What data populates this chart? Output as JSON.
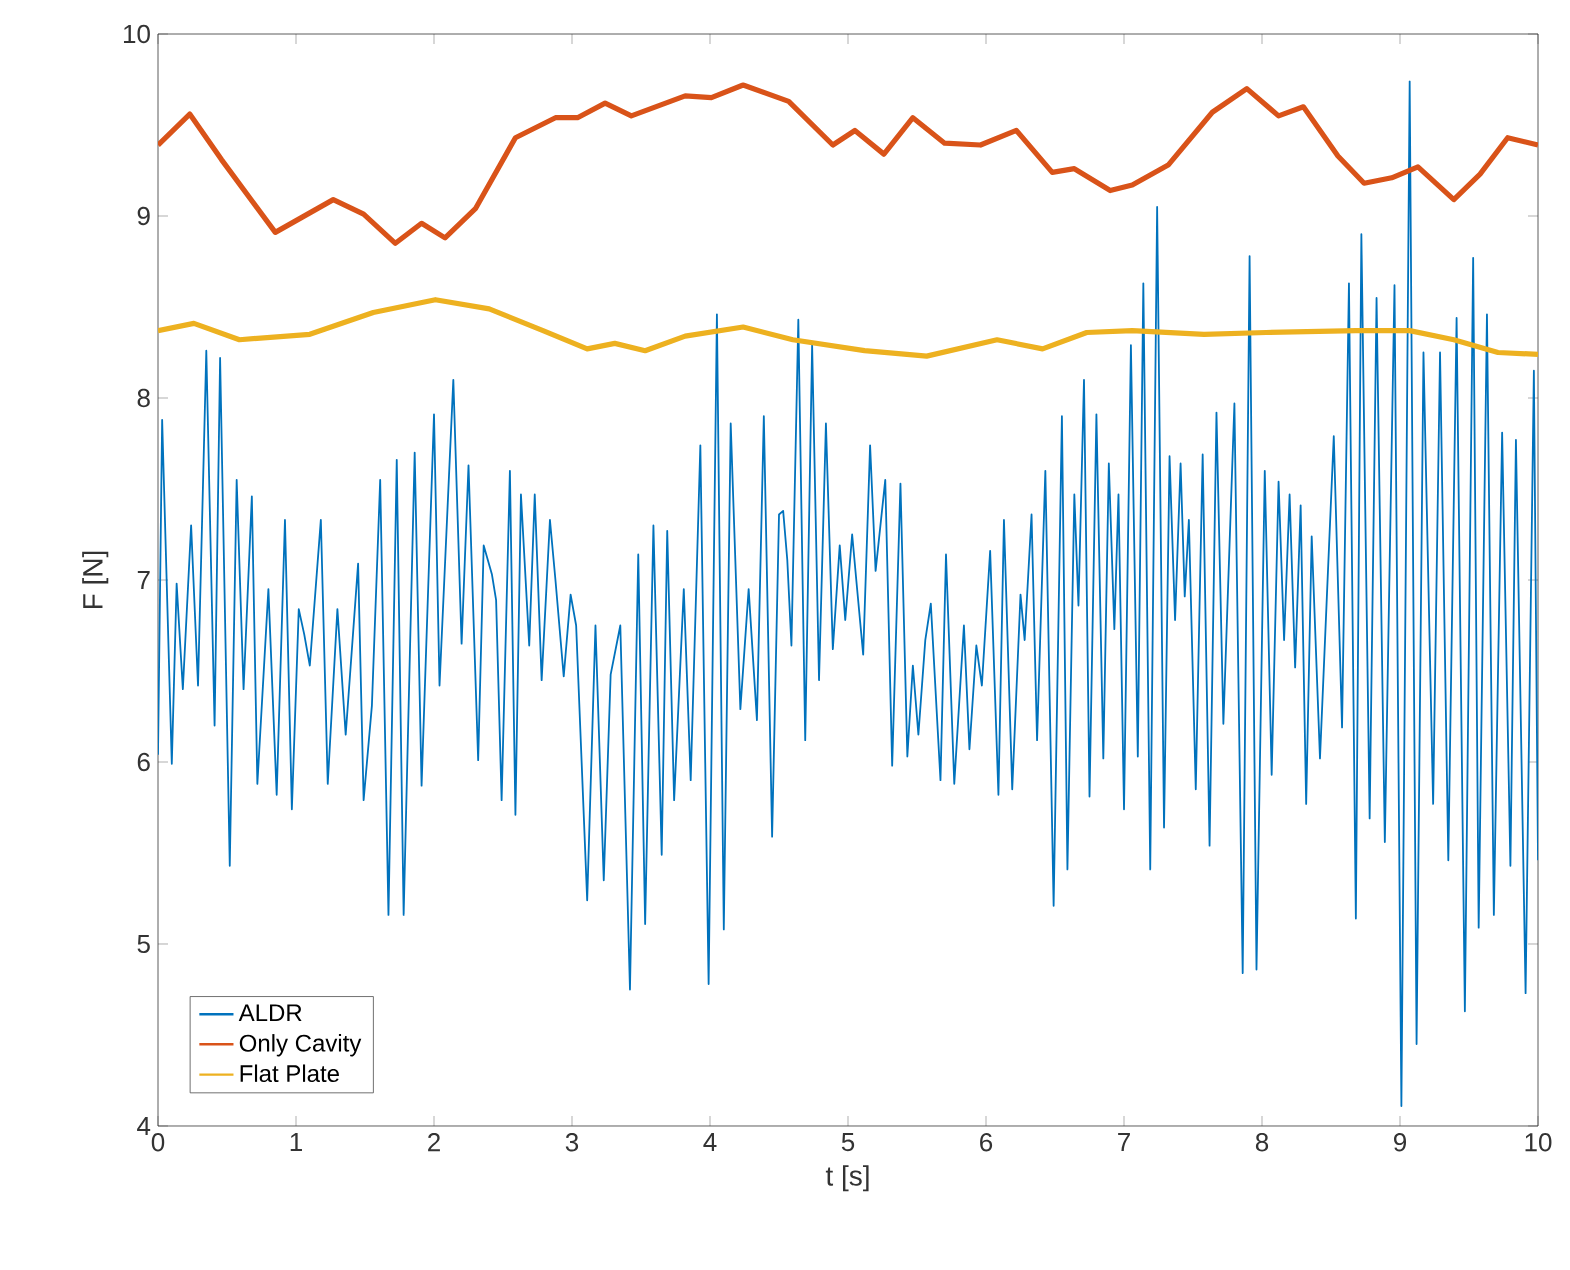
{
  "chart_data": {
    "type": "line",
    "xlabel": "t [s]",
    "ylabel": "F [N]",
    "xlim": [
      0,
      10
    ],
    "ylim": [
      4,
      10
    ],
    "xticks": [
      0,
      1,
      2,
      3,
      4,
      5,
      6,
      7,
      8,
      9,
      10
    ],
    "yticks": [
      4,
      5,
      6,
      7,
      8,
      9,
      10
    ],
    "legend": "bottom left",
    "marker": "none",
    "line_style": "solid",
    "series": [
      {
        "name": "ALDR",
        "color": "#0072bd",
        "x": [
          0.0,
          0.03,
          0.1,
          0.135,
          0.18,
          0.24,
          0.29,
          0.35,
          0.41,
          0.45,
          0.52,
          0.57,
          0.62,
          0.68,
          0.72,
          0.8,
          0.86,
          0.92,
          0.97,
          1.02,
          1.06,
          1.1,
          1.18,
          1.23,
          1.3,
          1.36,
          1.45,
          1.49,
          1.55,
          1.61,
          1.67,
          1.73,
          1.78,
          1.86,
          1.91,
          2.0,
          2.04,
          2.14,
          2.2,
          2.25,
          2.32,
          2.36,
          2.42,
          2.45,
          2.49,
          2.55,
          2.59,
          2.63,
          2.69,
          2.73,
          2.78,
          2.84,
          2.88,
          2.94,
          2.99,
          3.03,
          3.11,
          3.17,
          3.23,
          3.28,
          3.35,
          3.42,
          3.48,
          3.53,
          3.59,
          3.65,
          3.69,
          3.74,
          3.81,
          3.86,
          3.93,
          3.99,
          4.05,
          4.1,
          4.15,
          4.22,
          4.28,
          4.34,
          4.39,
          4.45,
          4.5,
          4.53,
          4.56,
          4.59,
          4.64,
          4.69,
          4.74,
          4.79,
          4.84,
          4.89,
          4.94,
          4.98,
          5.03,
          5.06,
          5.11,
          5.16,
          5.2,
          5.27,
          5.32,
          5.38,
          5.43,
          5.47,
          5.51,
          5.56,
          5.6,
          5.67,
          5.71,
          5.77,
          5.84,
          5.88,
          5.93,
          5.97,
          6.03,
          6.09,
          6.13,
          6.19,
          6.25,
          6.28,
          6.33,
          6.37,
          6.43,
          6.49,
          6.55,
          6.59,
          6.64,
          6.67,
          6.71,
          6.75,
          6.8,
          6.85,
          6.89,
          6.93,
          6.96,
          7.0,
          7.05,
          7.1,
          7.14,
          7.19,
          7.24,
          7.29,
          7.33,
          7.37,
          7.41,
          7.44,
          7.47,
          7.52,
          7.57,
          7.62,
          7.67,
          7.72,
          7.8,
          7.86,
          7.91,
          7.96,
          8.02,
          8.07,
          8.12,
          8.16,
          8.2,
          8.24,
          8.28,
          8.32,
          8.36,
          8.42,
          8.47,
          8.52,
          8.58,
          8.63,
          8.68,
          8.72,
          8.78,
          8.83,
          8.89,
          8.96,
          9.01,
          9.07,
          9.12,
          9.17,
          9.24,
          9.29,
          9.35,
          9.41,
          9.47,
          9.53,
          9.57,
          9.63,
          9.68,
          9.74,
          9.8,
          9.84,
          9.91,
          9.97,
          10.0
        ],
        "values": [
          6.04,
          7.88,
          5.99,
          6.98,
          6.4,
          7.3,
          6.42,
          8.26,
          6.2,
          8.22,
          5.43,
          7.55,
          6.4,
          7.46,
          5.88,
          6.95,
          5.82,
          7.33,
          5.74,
          6.84,
          6.7,
          6.53,
          7.33,
          5.88,
          6.84,
          6.15,
          7.09,
          5.79,
          6.31,
          7.55,
          5.16,
          7.66,
          5.16,
          7.7,
          5.87,
          7.91,
          6.42,
          8.1,
          6.65,
          7.63,
          6.01,
          7.19,
          7.03,
          6.89,
          5.79,
          7.6,
          5.71,
          7.47,
          6.64,
          7.47,
          6.45,
          7.33,
          7.0,
          6.47,
          6.92,
          6.75,
          5.24,
          6.75,
          5.35,
          6.48,
          6.75,
          4.75,
          7.14,
          5.11,
          7.3,
          5.49,
          7.27,
          5.79,
          6.95,
          5.9,
          7.74,
          4.78,
          8.46,
          5.08,
          7.86,
          6.29,
          6.95,
          6.23,
          7.9,
          5.59,
          7.36,
          7.38,
          7.11,
          6.64,
          8.43,
          6.12,
          8.29,
          6.45,
          7.86,
          6.62,
          7.19,
          6.78,
          7.25,
          7.0,
          6.59,
          7.74,
          7.05,
          7.55,
          5.98,
          7.53,
          6.03,
          6.53,
          6.15,
          6.67,
          6.87,
          5.9,
          7.14,
          5.88,
          6.75,
          6.07,
          6.64,
          6.42,
          7.16,
          5.82,
          7.33,
          5.85,
          6.92,
          6.67,
          7.36,
          6.12,
          7.6,
          5.21,
          7.9,
          5.41,
          7.47,
          6.86,
          8.1,
          5.81,
          7.91,
          6.02,
          7.64,
          6.73,
          7.47,
          5.74,
          8.29,
          6.03,
          8.63,
          5.41,
          9.05,
          5.64,
          7.68,
          6.78,
          7.64,
          6.91,
          7.33,
          5.85,
          7.69,
          5.54,
          7.92,
          6.21,
          7.97,
          4.84,
          8.78,
          4.86,
          7.6,
          5.93,
          7.54,
          6.67,
          7.47,
          6.52,
          7.41,
          5.77,
          7.24,
          6.02,
          6.91,
          7.79,
          6.19,
          8.63,
          5.14,
          8.9,
          5.69,
          8.55,
          5.56,
          8.62,
          4.11,
          9.74,
          4.45,
          8.25,
          5.77,
          8.25,
          5.46,
          8.44,
          4.63,
          8.77,
          5.09,
          8.46,
          5.16,
          7.81,
          5.43,
          7.77,
          4.73,
          8.15,
          5.46
        ]
      },
      {
        "name": "Only Cavity",
        "color": "#d95319",
        "x": [
          0.0,
          0.23,
          0.46,
          0.85,
          1.27,
          1.49,
          1.72,
          1.91,
          2.08,
          2.3,
          2.59,
          2.88,
          3.04,
          3.24,
          3.43,
          3.82,
          4.01,
          4.24,
          4.57,
          4.89,
          5.05,
          5.26,
          5.47,
          5.7,
          5.96,
          6.22,
          6.48,
          6.64,
          6.9,
          7.06,
          7.32,
          7.64,
          7.89,
          8.12,
          8.3,
          8.55,
          8.74,
          8.94,
          9.13,
          9.39,
          9.58,
          9.78,
          10.0
        ],
        "values": [
          9.39,
          9.56,
          9.31,
          8.91,
          9.09,
          9.01,
          8.85,
          8.96,
          8.88,
          9.04,
          9.43,
          9.54,
          9.54,
          9.62,
          9.55,
          9.66,
          9.65,
          9.72,
          9.63,
          9.39,
          9.47,
          9.34,
          9.54,
          9.4,
          9.39,
          9.47,
          9.24,
          9.26,
          9.14,
          9.17,
          9.28,
          9.57,
          9.7,
          9.55,
          9.6,
          9.33,
          9.18,
          9.21,
          9.27,
          9.09,
          9.23,
          9.43,
          9.39
        ]
      },
      {
        "name": "Flat Plate",
        "color": "#edb120",
        "x": [
          0.0,
          0.26,
          0.59,
          1.1,
          1.56,
          2.01,
          2.4,
          2.79,
          3.11,
          3.31,
          3.53,
          3.82,
          4.24,
          4.6,
          5.12,
          5.57,
          6.08,
          6.41,
          6.73,
          7.06,
          7.58,
          8.03,
          8.68,
          9.07,
          9.39,
          9.71,
          10.0
        ],
        "values": [
          8.37,
          8.41,
          8.32,
          8.35,
          8.47,
          8.54,
          8.49,
          8.37,
          8.27,
          8.3,
          8.26,
          8.34,
          8.39,
          8.32,
          8.26,
          8.23,
          8.32,
          8.27,
          8.36,
          8.37,
          8.35,
          8.36,
          8.37,
          8.37,
          8.32,
          8.25,
          8.24
        ]
      }
    ]
  }
}
